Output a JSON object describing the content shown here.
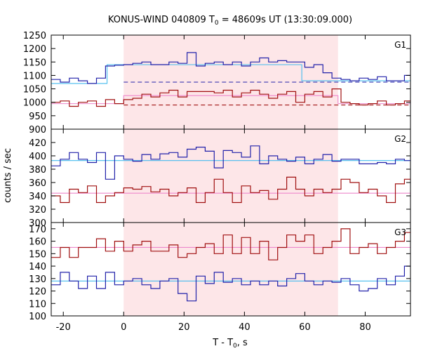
{
  "chart_data": {
    "type": "line",
    "title": "KONUS-WIND 040809 T",
    "title_sub": "0",
    "title_rest": " = 48609s UT (13:30:09.000)",
    "xlabel": "T - T",
    "xlabel_sub": "0",
    "xlabel_rest": ", s",
    "ylabel": "counts / sec",
    "xlim": [
      -24,
      95
    ],
    "x_ticks": [
      -20,
      0,
      20,
      40,
      60,
      80
    ],
    "x_tick_labels": [
      "-20",
      "0",
      "20",
      "40",
      "60",
      "80"
    ],
    "highlight_region": [
      0,
      71
    ],
    "colors": {
      "blue_series": "#2222aa",
      "red_series": "#a01010",
      "cyan_fit": "#44bbee",
      "pink_fit": "#ee88cc",
      "highlight": "#fde6e8"
    },
    "panels": [
      {
        "label": "G1",
        "ylim": [
          900,
          1250
        ],
        "y_ticks": [
          900,
          950,
          1000,
          1050,
          1100,
          1150,
          1200,
          1250
        ],
        "y_tick_labels": [
          "900",
          "950",
          "1000",
          "1050",
          "1100",
          "1150",
          "1200",
          "1250"
        ],
        "series": [
          {
            "style": "blue",
            "x": [
              -24,
              -21,
              -18,
              -15,
              -12,
              -9,
              -6,
              -3,
              0,
              3,
              6,
              9,
              12,
              15,
              18,
              21,
              24,
              27,
              30,
              33,
              36,
              39,
              42,
              45,
              48,
              51,
              54,
              57,
              60,
              63,
              66,
              69,
              72,
              75,
              78,
              81,
              84,
              87,
              90,
              93
            ],
            "y": [
              1085,
              1075,
              1090,
              1080,
              1070,
              1090,
              1135,
              1138,
              1140,
              1145,
              1150,
              1140,
              1140,
              1150,
              1145,
              1185,
              1135,
              1145,
              1150,
              1140,
              1150,
              1135,
              1150,
              1165,
              1150,
              1155,
              1150,
              1150,
              1130,
              1140,
              1110,
              1090,
              1085,
              1080,
              1090,
              1085,
              1095,
              1080,
              1080,
              1100
            ]
          },
          {
            "style": "red",
            "x": [
              -24,
              -21,
              -18,
              -15,
              -12,
              -9,
              -6,
              -3,
              0,
              3,
              6,
              9,
              12,
              15,
              18,
              21,
              24,
              27,
              30,
              33,
              36,
              39,
              42,
              45,
              48,
              51,
              54,
              57,
              60,
              63,
              66,
              69,
              72,
              75,
              78,
              81,
              84,
              87,
              90,
              93
            ],
            "y": [
              1000,
              1005,
              985,
              1000,
              1005,
              985,
              1010,
              995,
              1010,
              1015,
              1030,
              1020,
              1035,
              1045,
              1020,
              1040,
              1040,
              1040,
              1035,
              1045,
              1020,
              1035,
              1045,
              1030,
              1015,
              1030,
              1040,
              1000,
              1030,
              1040,
              1020,
              1050,
              1000,
              995,
              990,
              995,
              1005,
              990,
              995,
              1005
            ]
          }
        ],
        "fits": [
          {
            "style": "cyan",
            "kind": "step",
            "x": [
              -24,
              -5.5,
              -5.5,
              59,
              59,
              95
            ],
            "y": [
              1070,
              1070,
              1140,
              1140,
              1080,
              1080
            ]
          },
          {
            "style": "blue",
            "kind": "dashed",
            "x": [
              0,
              95
            ],
            "y": [
              1075,
              1075
            ]
          },
          {
            "style": "pink",
            "kind": "step",
            "x": [
              -24,
              0,
              0,
              71,
              71,
              95
            ],
            "y": [
              995,
              995,
              1025,
              1025,
              995,
              995
            ]
          },
          {
            "style": "red",
            "kind": "dashed",
            "x": [
              0,
              95
            ],
            "y": [
              990,
              990
            ]
          }
        ]
      },
      {
        "label": "G2",
        "ylim": [
          300,
          440
        ],
        "y_ticks": [
          300,
          320,
          340,
          360,
          380,
          400,
          420
        ],
        "y_tick_labels": [
          "300",
          "320",
          "340",
          "360",
          "380",
          "400",
          "420"
        ],
        "series": [
          {
            "style": "blue",
            "x": [
              -24,
              -21,
              -18,
              -15,
              -12,
              -9,
              -6,
              -3,
              0,
              3,
              6,
              9,
              12,
              15,
              18,
              21,
              24,
              27,
              30,
              33,
              36,
              39,
              42,
              45,
              48,
              51,
              54,
              57,
              60,
              63,
              66,
              69,
              72,
              75,
              78,
              81,
              84,
              87,
              90,
              93
            ],
            "y": [
              385,
              395,
              405,
              395,
              390,
              405,
              365,
              400,
              395,
              392,
              402,
              395,
              403,
              405,
              398,
              410,
              413,
              407,
              382,
              408,
              405,
              398,
              415,
              388,
              400,
              395,
              392,
              398,
              388,
              395,
              402,
              392,
              395,
              395,
              388,
              388,
              390,
              388,
              395,
              393
            ]
          },
          {
            "style": "red",
            "x": [
              -24,
              -21,
              -18,
              -15,
              -12,
              -9,
              -6,
              -3,
              0,
              3,
              6,
              9,
              12,
              15,
              18,
              21,
              24,
              27,
              30,
              33,
              36,
              39,
              42,
              45,
              48,
              51,
              54,
              57,
              60,
              63,
              66,
              69,
              72,
              75,
              78,
              81,
              84,
              87,
              90,
              93
            ],
            "y": [
              340,
              330,
              350,
              345,
              355,
              330,
              340,
              345,
              352,
              350,
              354,
              346,
              350,
              340,
              345,
              352,
              330,
              345,
              365,
              345,
              330,
              355,
              345,
              348,
              335,
              350,
              368,
              350,
              340,
              350,
              345,
              350,
              365,
              360,
              345,
              350,
              340,
              330,
              358,
              365
            ]
          }
        ],
        "fits": [
          {
            "style": "cyan",
            "kind": "line",
            "x": [
              -24,
              95
            ],
            "y": [
              393,
              393
            ]
          },
          {
            "style": "pink",
            "kind": "line",
            "x": [
              -24,
              95
            ],
            "y": [
              344,
              344
            ]
          }
        ]
      },
      {
        "label": "G3",
        "ylim": [
          100,
          175
        ],
        "y_ticks": [
          100,
          110,
          120,
          130,
          140,
          150,
          160,
          170
        ],
        "y_tick_labels": [
          "100",
          "110",
          "120",
          "130",
          "140",
          "150",
          "160",
          "170"
        ],
        "series": [
          {
            "style": "red",
            "x": [
              -24,
              -21,
              -18,
              -15,
              -12,
              -9,
              -6,
              -3,
              0,
              3,
              6,
              9,
              12,
              15,
              18,
              21,
              24,
              27,
              30,
              33,
              36,
              39,
              42,
              45,
              48,
              51,
              54,
              57,
              60,
              63,
              66,
              69,
              72,
              75,
              78,
              81,
              84,
              87,
              90,
              93
            ],
            "y": [
              147,
              155,
              147,
              155,
              155,
              162,
              152,
              160,
              152,
              157,
              160,
              152,
              152,
              157,
              147,
              150,
              155,
              158,
              150,
              165,
              150,
              163,
              150,
              160,
              145,
              155,
              165,
              160,
              165,
              150,
              155,
              160,
              170,
              150,
              155,
              158,
              150,
              155,
              160,
              167
            ]
          },
          {
            "style": "blue",
            "x": [
              -24,
              -21,
              -18,
              -15,
              -12,
              -9,
              -6,
              -3,
              0,
              3,
              6,
              9,
              12,
              15,
              18,
              21,
              24,
              27,
              30,
              33,
              36,
              39,
              42,
              45,
              48,
              51,
              54,
              57,
              60,
              63,
              66,
              69,
              72,
              75,
              78,
              81,
              84,
              87,
              90,
              93
            ],
            "y": [
              125,
              135,
              128,
              122,
              132,
              122,
              135,
              125,
              128,
              130,
              125,
              122,
              128,
              130,
              118,
              112,
              132,
              126,
              135,
              127,
              130,
              125,
              128,
              125,
              128,
              124,
              130,
              134,
              128,
              125,
              128,
              127,
              130,
              125,
              120,
              122,
              130,
              125,
              132,
              140
            ]
          }
        ],
        "fits": [
          {
            "style": "pink",
            "kind": "line",
            "x": [
              -24,
              95
            ],
            "y": [
              155,
              155
            ]
          },
          {
            "style": "cyan",
            "kind": "line",
            "x": [
              -24,
              95
            ],
            "y": [
              128,
              128
            ]
          }
        ]
      }
    ]
  }
}
